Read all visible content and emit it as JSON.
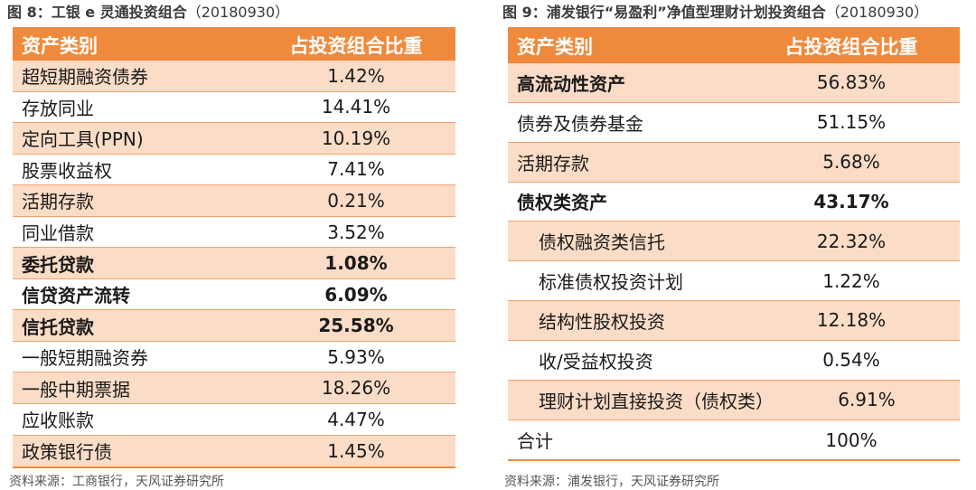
{
  "left": {
    "title": "图 8：工银 e 灵通投资组合",
    "date": "（20180930）",
    "header": {
      "col1": "资产类别",
      "col2": "占投资组合比重"
    },
    "rows": [
      {
        "name": "超短期融资债券",
        "value": "1.42%"
      },
      {
        "name": "存放同业",
        "value": "14.41%"
      },
      {
        "name": "定向工具(PPN)",
        "value": "10.19%"
      },
      {
        "name": "股票收益权",
        "value": "7.41%"
      },
      {
        "name": "活期存款",
        "value": "0.21%"
      },
      {
        "name": "同业借款",
        "value": "3.52%"
      },
      {
        "name": "委托贷款",
        "value": "1.08%"
      },
      {
        "name": "信贷资产流转",
        "value": "6.09%"
      },
      {
        "name": "信托贷款",
        "value": "25.58%"
      },
      {
        "name": "一般短期融资券",
        "value": "5.93%"
      },
      {
        "name": "一般中期票据",
        "value": "18.26%"
      },
      {
        "name": "应收账款",
        "value": "4.47%"
      },
      {
        "name": "政策银行债",
        "value": "1.45%"
      }
    ],
    "source": "资料来源：工商银行，天风证券研究所"
  },
  "right": {
    "title": "图 9：浦发银行“易盈利”净值型理财计划投资组合",
    "date": "（20180930）",
    "header": {
      "col1": "资产类别",
      "col2": "占投资组合比重"
    },
    "rows": [
      {
        "name": "高流动性资产",
        "value": "56.83%"
      },
      {
        "name": "债券及债券基金",
        "value": "51.15%"
      },
      {
        "name": "活期存款",
        "value": "5.68%"
      },
      {
        "name": "债权类资产",
        "value": "43.17%"
      },
      {
        "name": "债权融资类信托",
        "value": "22.32%"
      },
      {
        "name": "标准债权投资计划",
        "value": "1.22%"
      },
      {
        "name": "结构性股权投资",
        "value": "12.18%"
      },
      {
        "name": "收/受益权投资",
        "value": "0.54%"
      },
      {
        "name": "理财计划直接投资（债权类）",
        "value": "6.91%"
      },
      {
        "name": "合计",
        "value": "100%"
      }
    ],
    "source": "资料来源：浦发银行，天风证券研究所"
  }
}
